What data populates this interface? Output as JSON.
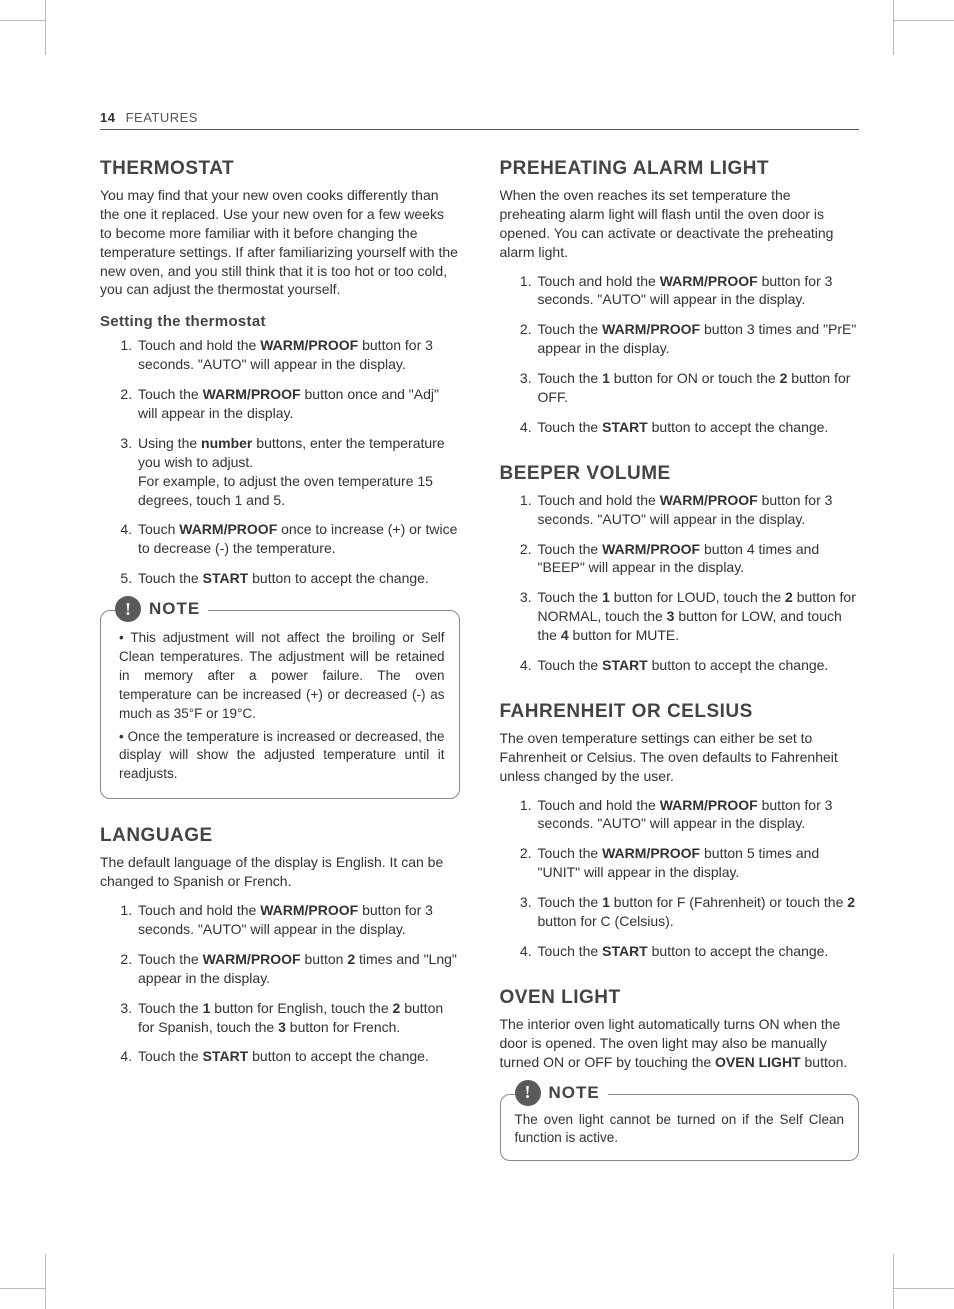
{
  "page": {
    "number": "14",
    "section": "FEATURES"
  },
  "note_label": "NOTE",
  "thermostat": {
    "heading": "THERMOSTAT",
    "intro": "You may find that your new oven cooks differently than the one it replaced. Use your new oven for a few weeks to become more familiar with it before changing the temperature settings. If after familiarizing yourself with the new oven, and you still think that it is too hot or too cold, you can adjust the thermostat yourself.",
    "subhead": "Setting the thermostat",
    "step1a": "Touch and hold the ",
    "step1b": "WARM/PROOF",
    "step1c": " button for 3 seconds. \"AUTO\" will appear in the display.",
    "step2a": "Touch the ",
    "step2b": "WARM/PROOF",
    "step2c": " button once and \"Adj\" will appear in the display.",
    "step3a": "Using the ",
    "step3b": "number",
    "step3c": " buttons, enter the temperature you wish to adjust.",
    "step3d": "For example, to adjust the oven temperature 15 degrees, touch 1 and 5.",
    "step4a": "Touch ",
    "step4b": "WARM/PROOF",
    "step4c": " once to increase (+) or twice to decrease (-) the temperature.",
    "step5a": "Touch the ",
    "step5b": "START",
    "step5c": " button to accept the change.",
    "note1": "This adjustment will not affect the broiling or Self Clean temperatures. The adjustment will be retained in memory after a power failure. The oven temperature can be increased (+) or decreased (-) as much as 35°F or 19°C.",
    "note2": "Once the temperature is increased or decreased, the display will show the adjusted temperature until it readjusts."
  },
  "language": {
    "heading": "LANGUAGE",
    "intro": "The default language of the display is English. It can be changed to Spanish or French.",
    "step1a": "Touch and hold the ",
    "step1b": "WARM/PROOF",
    "step1c": " button for 3 seconds. \"AUTO\" will appear in the display.",
    "step2a": "Touch the ",
    "step2b": "WARM/PROOF",
    "step2c": " button ",
    "step2d": "2",
    "step2e": " times and \"Lng\" appear in the display.",
    "step3a": "Touch the ",
    "step3b": "1",
    "step3c": " button for English, touch the ",
    "step3d": "2",
    "step3e": " button for Spanish, touch the ",
    "step3f": "3",
    "step3g": " button for French.",
    "step4a": "Touch the ",
    "step4b": "START",
    "step4c": " button to accept the change."
  },
  "preheat": {
    "heading": "PREHEATING ALARM LIGHT",
    "intro": "When the oven reaches its set temperature the preheating alarm light will flash until the oven door is opened. You can activate or deactivate the preheating alarm light.",
    "step1a": "Touch and hold the ",
    "step1b": "WARM/PROOF",
    "step1c": " button for 3 seconds. \"AUTO\" will appear in the display.",
    "step2a": "Touch the ",
    "step2b": "WARM/PROOF",
    "step2c": " button 3 times and \"PrE\" appear in the display.",
    "step3a": "Touch the ",
    "step3b": "1",
    "step3c": " button for ON or touch the ",
    "step3d": "2",
    "step3e": " button for OFF.",
    "step4a": "Touch the ",
    "step4b": "START",
    "step4c": " button to accept the change."
  },
  "beeper": {
    "heading": "BEEPER VOLUME",
    "step1a": "Touch and hold the ",
    "step1b": "WARM/PROOF",
    "step1c": " button for 3 seconds. \"AUTO\" will appear in the display.",
    "step2a": "Touch the ",
    "step2b": "WARM/PROOF",
    "step2c": " button 4 times and \"BEEP\" will appear in the display.",
    "step3a": "Touch the ",
    "step3b": "1",
    "step3c": " button for LOUD, touch the ",
    "step3d": "2",
    "step3e": " button for NORMAL, touch the ",
    "step3f": "3",
    "step3g": " button for LOW, and touch the ",
    "step3h": "4",
    "step3i": " button for MUTE.",
    "step4a": "Touch the ",
    "step4b": "START",
    "step4c": " button to accept the change."
  },
  "units": {
    "heading": "FAHRENHEIT OR CELSIUS",
    "intro": "The oven temperature settings can either be set to Fahrenheit or Celsius. The oven defaults to Fahrenheit unless changed by the user.",
    "step1a": "Touch and hold the ",
    "step1b": "WARM/PROOF",
    "step1c": " button for 3 seconds. \"AUTO\" will appear in the display.",
    "step2a": "Touch the ",
    "step2b": "WARM/PROOF",
    "step2c": " button 5 times and \"UNIT\" will appear in the display.",
    "step3a": "Touch the ",
    "step3b": "1",
    "step3c": " button for F (Fahrenheit) or touch the ",
    "step3d": "2",
    "step3e": " button for C (Celsius).",
    "step4a": "Touch the ",
    "step4b": "START",
    "step4c": " button to accept the change."
  },
  "ovenlight": {
    "heading": "OVEN LIGHT",
    "intro_a": "The interior oven light automatically turns ON when the door is opened. The oven light may also be manually turned ON or OFF by touching the ",
    "intro_b": "OVEN LIGHT",
    "intro_c": " button.",
    "note": "The oven light cannot be turned on if the Self Clean function is active."
  }
}
